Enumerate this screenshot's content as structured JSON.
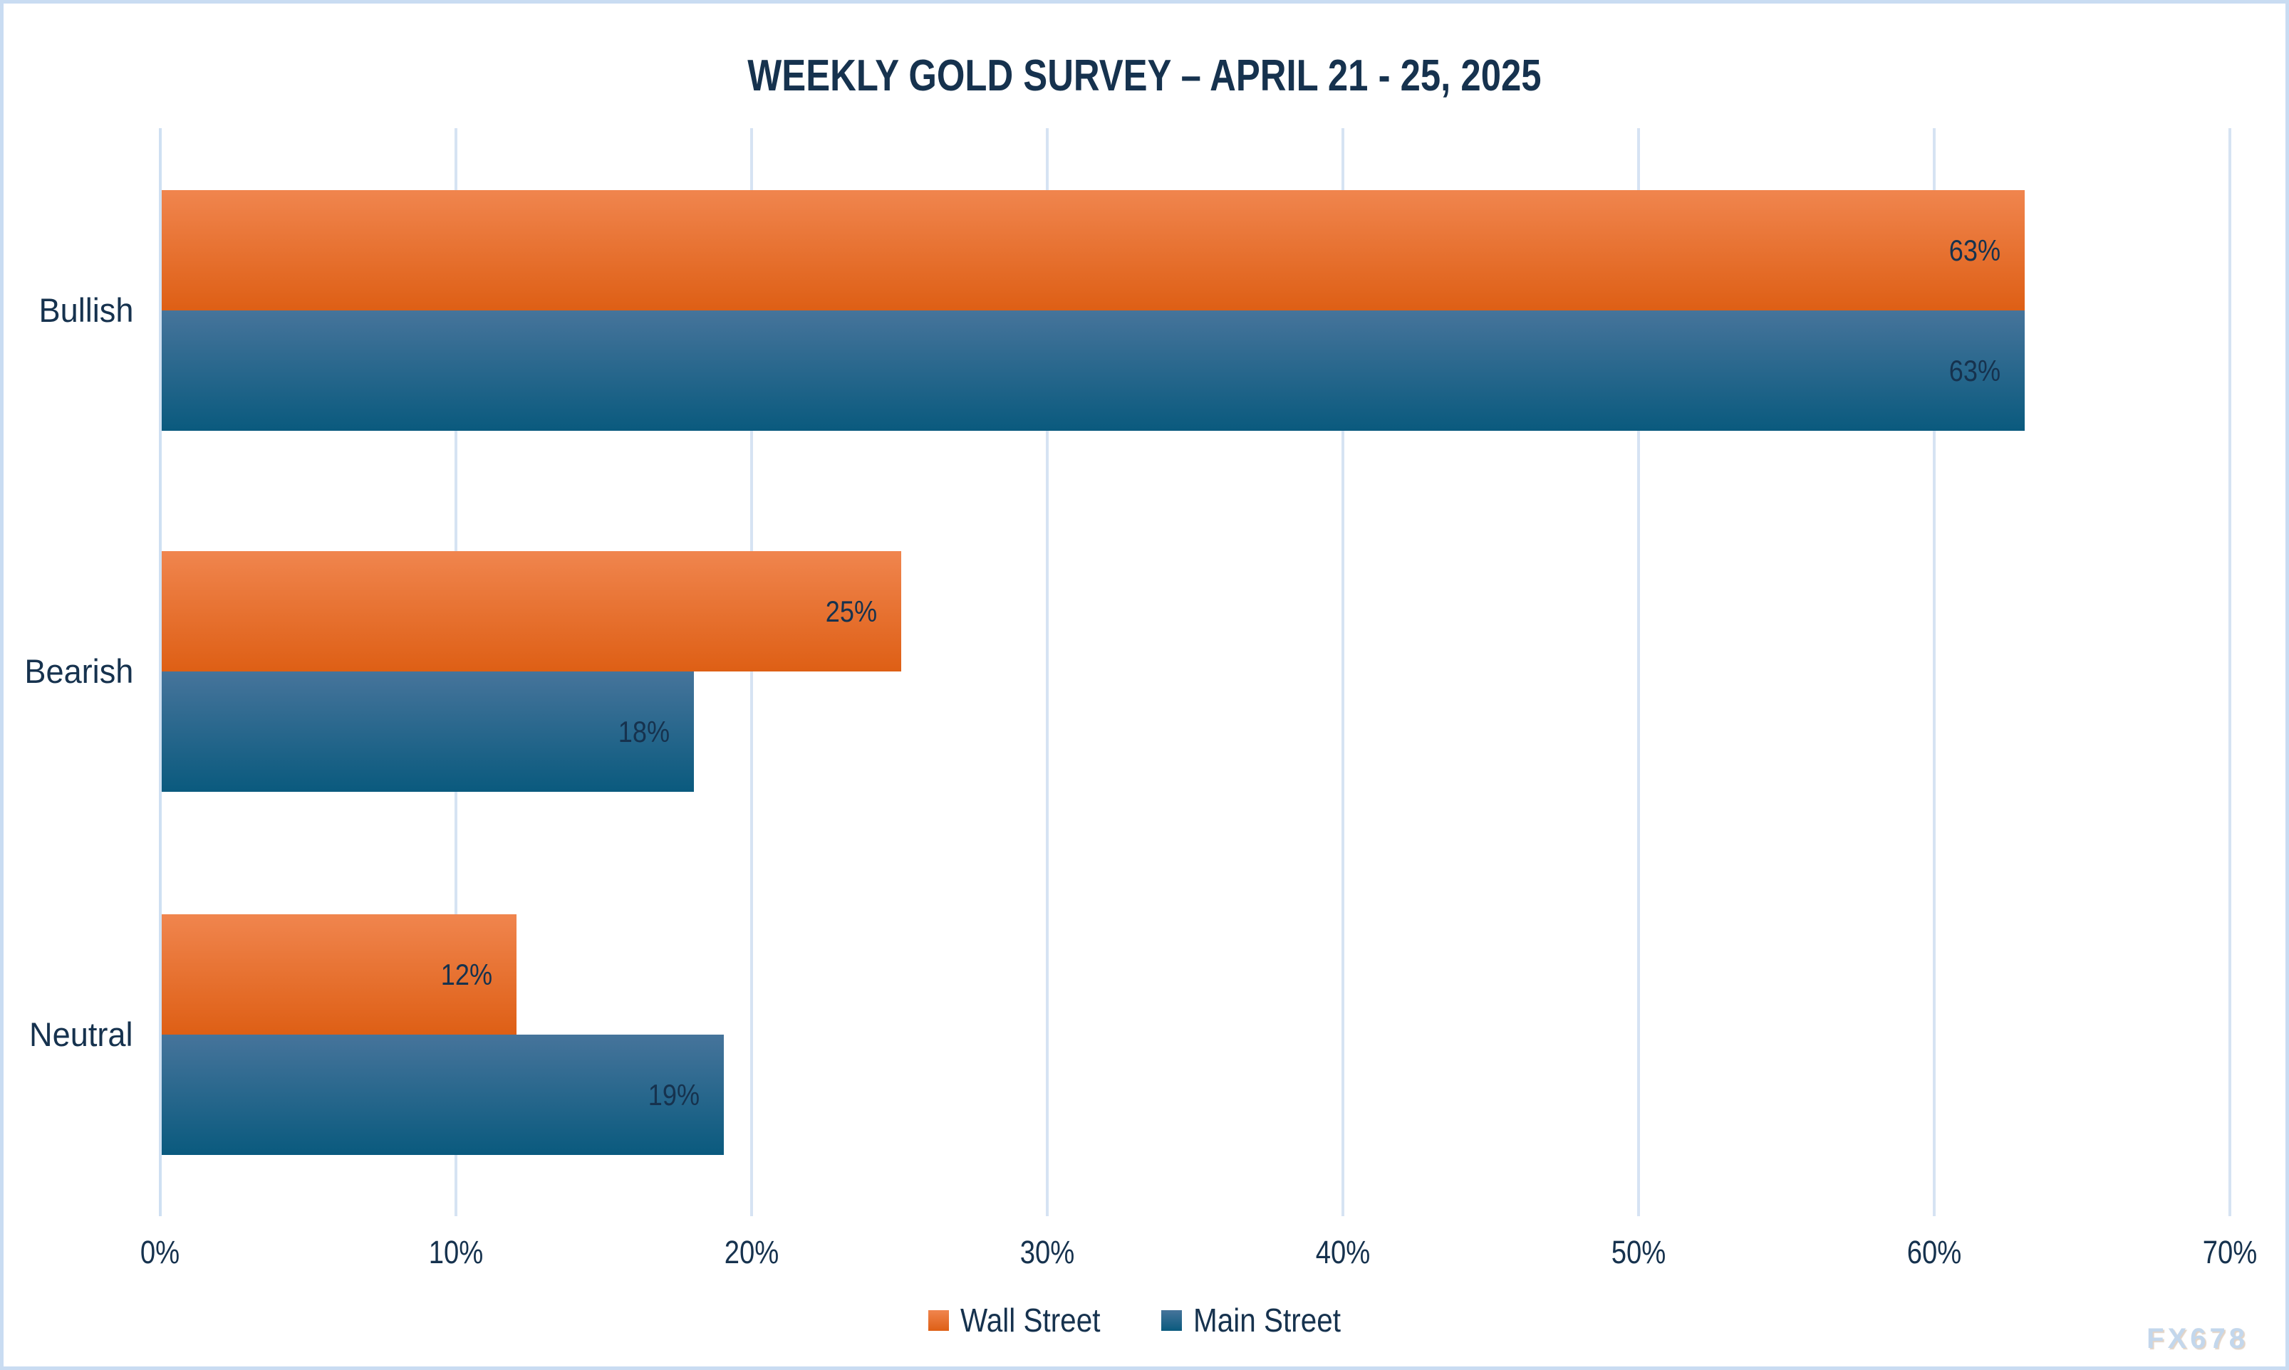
{
  "title": "WEEKLY GOLD SURVEY – APRIL 21 - 25, 2025",
  "watermark": "FX678",
  "colors": {
    "text_navy": "#16324e",
    "gridline": "#d6e3f3",
    "frame_border": "#c9dcf2",
    "wall_street_top": "#f0854e",
    "wall_street_bottom": "#de5f15",
    "main_street_top": "#46749b",
    "main_street_bottom": "#0a5a7e",
    "watermark": "#c3d7ec"
  },
  "chart_data": {
    "type": "bar",
    "orientation": "horizontal",
    "title": "WEEKLY GOLD SURVEY – APRIL 21 - 25, 2025",
    "categories": [
      "Bullish",
      "Bearish",
      "Neutral"
    ],
    "series": [
      {
        "name": "Wall Street",
        "values": [
          63,
          25,
          12
        ]
      },
      {
        "name": "Main Street",
        "values": [
          63,
          18,
          19
        ]
      }
    ],
    "value_labels": [
      [
        "63%",
        "25%",
        "12%"
      ],
      [
        "63%",
        "18%",
        "19%"
      ]
    ],
    "value_suffix": "%",
    "xlim": [
      0,
      70
    ],
    "x_tick_step": 10,
    "x_tick_labels": [
      "0%",
      "10%",
      "20%",
      "30%",
      "40%",
      "50%",
      "60%",
      "70%"
    ],
    "grid": true,
    "legend_position": "bottom"
  }
}
